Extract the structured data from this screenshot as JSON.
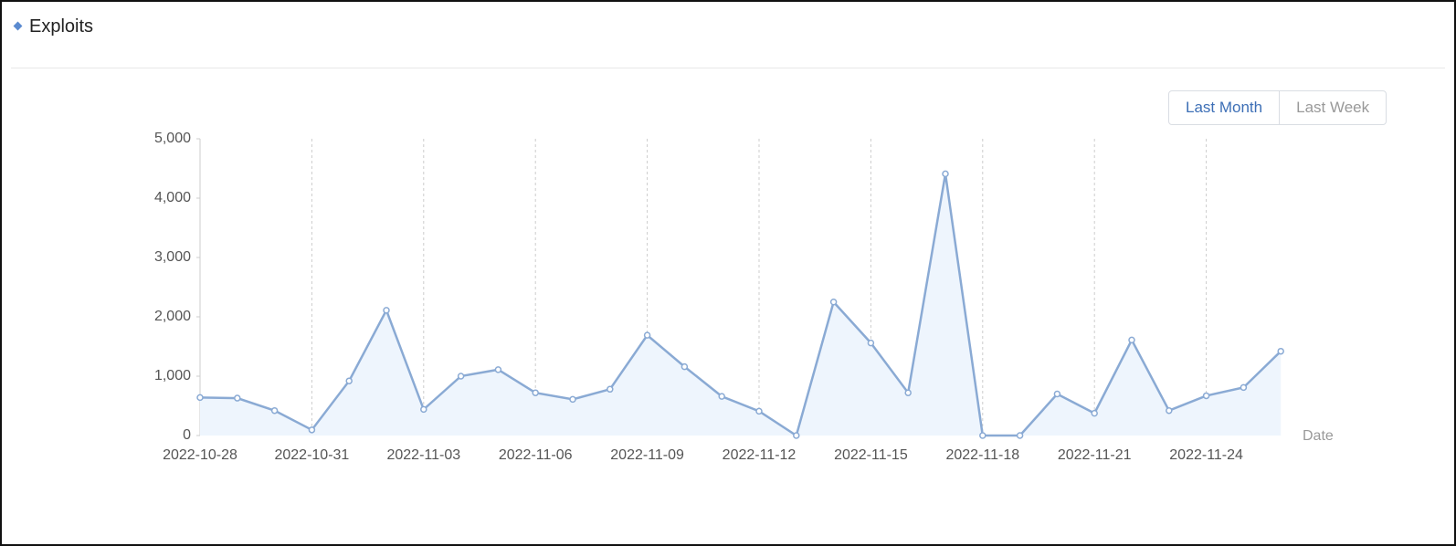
{
  "header": {
    "title": "Exploits"
  },
  "controls": [
    "Last Month",
    "Last Week"
  ],
  "chart_data": {
    "type": "line",
    "x_label": "Date",
    "categories": [
      "2022-10-28",
      null,
      null,
      "2022-10-31",
      null,
      null,
      "2022-11-03",
      null,
      null,
      "2022-11-06",
      null,
      null,
      "2022-11-09",
      null,
      null,
      "2022-11-12",
      null,
      null,
      "2022-11-15",
      null,
      null,
      "2022-11-18",
      null,
      null,
      "2022-11-21",
      null,
      null,
      "2022-11-24",
      null,
      null
    ],
    "values": [
      640,
      630,
      420,
      95,
      920,
      2110,
      440,
      1000,
      1110,
      720,
      610,
      780,
      1690,
      1160,
      660,
      410,
      0,
      2250,
      1560,
      720,
      4410,
      0,
      0,
      700,
      375,
      1610,
      420,
      670,
      810,
      1420
    ],
    "color": "#8aaad4",
    "area_color": "#eef5fd",
    "ylim": [
      0,
      5000
    ],
    "yticks": [
      0,
      {
        "value": 1000,
        "label": "1,000"
      },
      {
        "value": 2000,
        "label": "2,000"
      },
      {
        "value": 3000,
        "label": "3,000"
      },
      {
        "value": 4000,
        "label": "4,000"
      },
      {
        "value": 5000,
        "label": "5,000"
      }
    ],
    "grid": true
  }
}
